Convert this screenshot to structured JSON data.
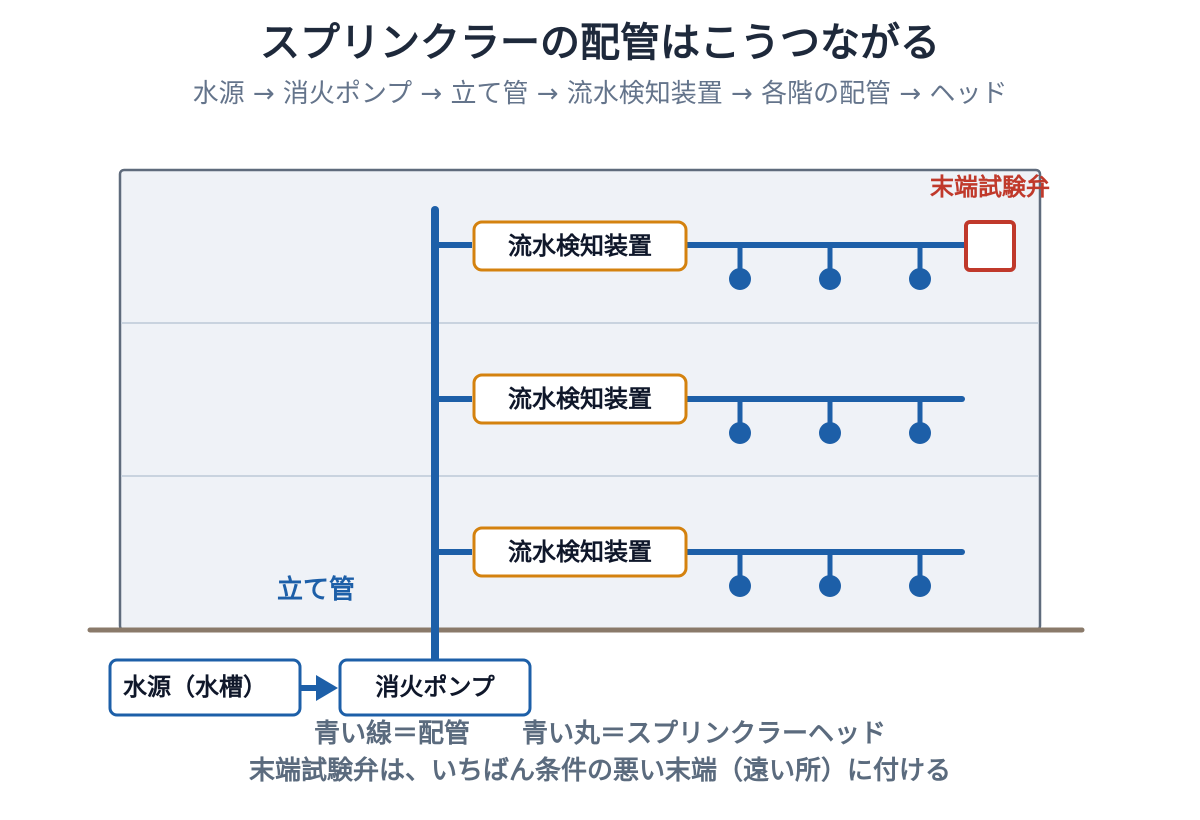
{
  "title": "スプリンクラーの配管はこうつながる",
  "subtitle": "水源 → 消火ポンプ → 立て管 → 流水検知装置 → 各階の配管 → ヘッド",
  "floors": [
    {
      "valve_label": "流水検知装置",
      "heads": 3,
      "has_test_valve": true
    },
    {
      "valve_label": "流水検知装置",
      "heads": 3,
      "has_test_valve": false
    },
    {
      "valve_label": "流水検知装置",
      "heads": 3,
      "has_test_valve": false
    }
  ],
  "test_valve_label": "末端試験弁",
  "riser_label": "立て管",
  "water_source_label": "水源（水槽）",
  "pump_label": "消火ポンプ",
  "legend": {
    "line1": "青い線＝配管　　青い丸＝スプリンクラーヘッド",
    "line2": "末端試験弁は、いちばん条件の悪い末端（遠い所）に付ける"
  },
  "colors": {
    "pipe": "#1d5fa8",
    "building_fill": "#eff2f7",
    "building_stroke": "#5f6b7c",
    "floor_divider": "#c9d3df",
    "ground": "#8a7a6a",
    "valve_border": "#d4820f",
    "test_valve": "#c0392b",
    "source_border": "#1d5fa8"
  }
}
